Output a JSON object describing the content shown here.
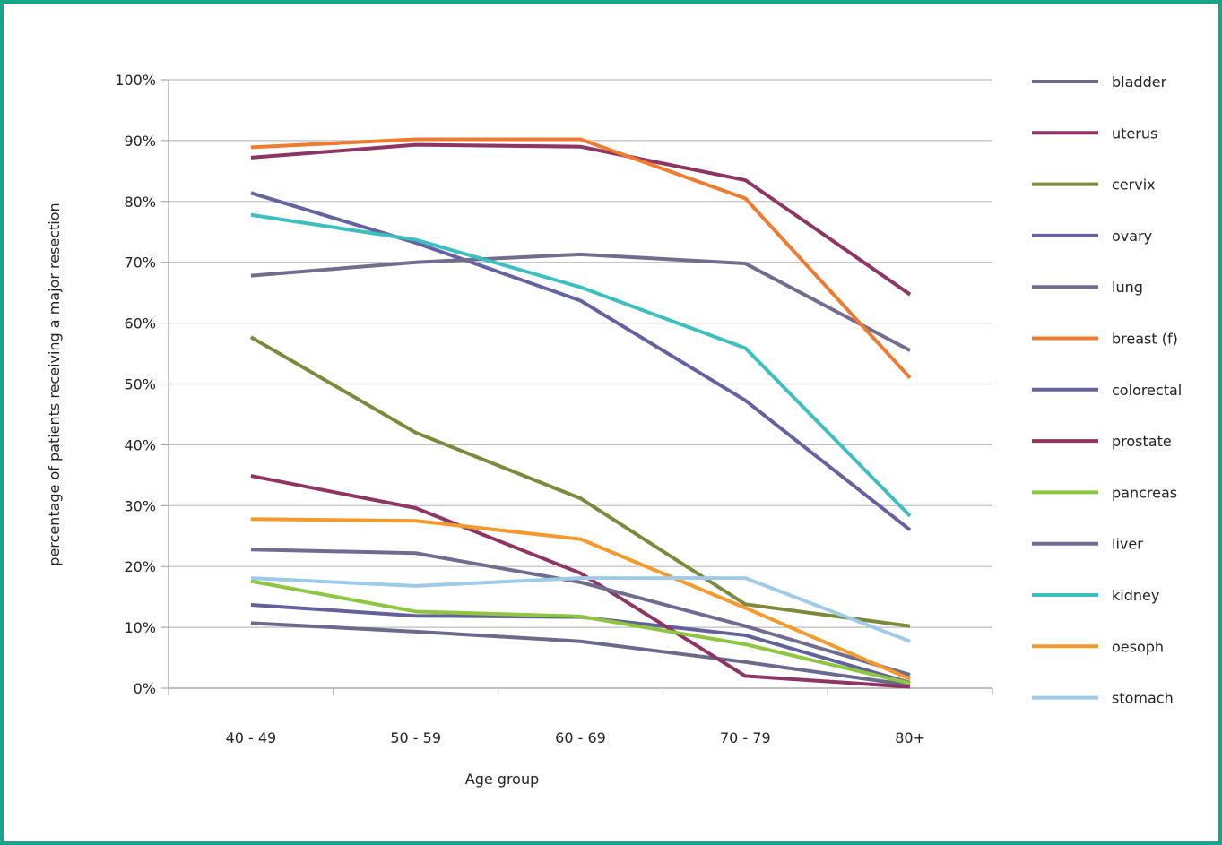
{
  "chart_data": {
    "type": "line",
    "xlabel": "Age group",
    "ylabel": "percentage of patients receiving a major resection",
    "categories": [
      "40 - 49",
      "50 - 59",
      "60 - 69",
      "70 - 79",
      "80+"
    ],
    "ylim": [
      0,
      100
    ],
    "yticks": [
      "0%",
      "10%",
      "20%",
      "30%",
      "40%",
      "50%",
      "60%",
      "70%",
      "80%",
      "90%",
      "100%"
    ],
    "grid": true,
    "legend_position": "right",
    "series": [
      {
        "name": "bladder",
        "color": "#6b6a8c",
        "values": [
          10.7,
          9.3,
          7.7,
          4.3,
          0.5
        ]
      },
      {
        "name": "uterus",
        "color": "#8e3564",
        "values": [
          87.2,
          89.3,
          89.0,
          83.5,
          64.7
        ]
      },
      {
        "name": "cervix",
        "color": "#7b8a3b",
        "values": [
          57.7,
          42.0,
          31.2,
          13.8,
          10.2
        ]
      },
      {
        "name": "ovary",
        "color": "#6462a0",
        "values": [
          81.4,
          73.2,
          63.7,
          47.3,
          26.0
        ]
      },
      {
        "name": "lung",
        "color": "#706d8e",
        "values": [
          67.8,
          70.0,
          71.3,
          69.8,
          55.5
        ]
      },
      {
        "name": "breast (f)",
        "color": "#f07a2e",
        "values": [
          88.9,
          90.2,
          90.2,
          80.5,
          51.0
        ]
      },
      {
        "name": "colorectal",
        "color": "#62619a",
        "values": [
          13.7,
          11.9,
          11.7,
          8.7,
          0.9
        ]
      },
      {
        "name": "prostate",
        "color": "#8e3564",
        "values": [
          34.9,
          29.6,
          18.9,
          2.0,
          0.2
        ]
      },
      {
        "name": "pancreas",
        "color": "#8dc63f",
        "values": [
          17.6,
          12.6,
          11.8,
          7.2,
          0.8
        ]
      },
      {
        "name": "liver",
        "color": "#6f6c90",
        "values": [
          22.8,
          22.2,
          17.4,
          10.2,
          2.2
        ]
      },
      {
        "name": "kidney",
        "color": "#3dbfbf",
        "values": [
          77.8,
          73.7,
          65.9,
          55.9,
          28.3
        ]
      },
      {
        "name": "oesoph",
        "color": "#f59a2a",
        "values": [
          27.8,
          27.5,
          24.5,
          13.2,
          1.5
        ]
      },
      {
        "name": "stomach",
        "color": "#9dcbe9",
        "values": [
          18.1,
          16.8,
          18.1,
          18.1,
          7.7
        ]
      }
    ]
  }
}
